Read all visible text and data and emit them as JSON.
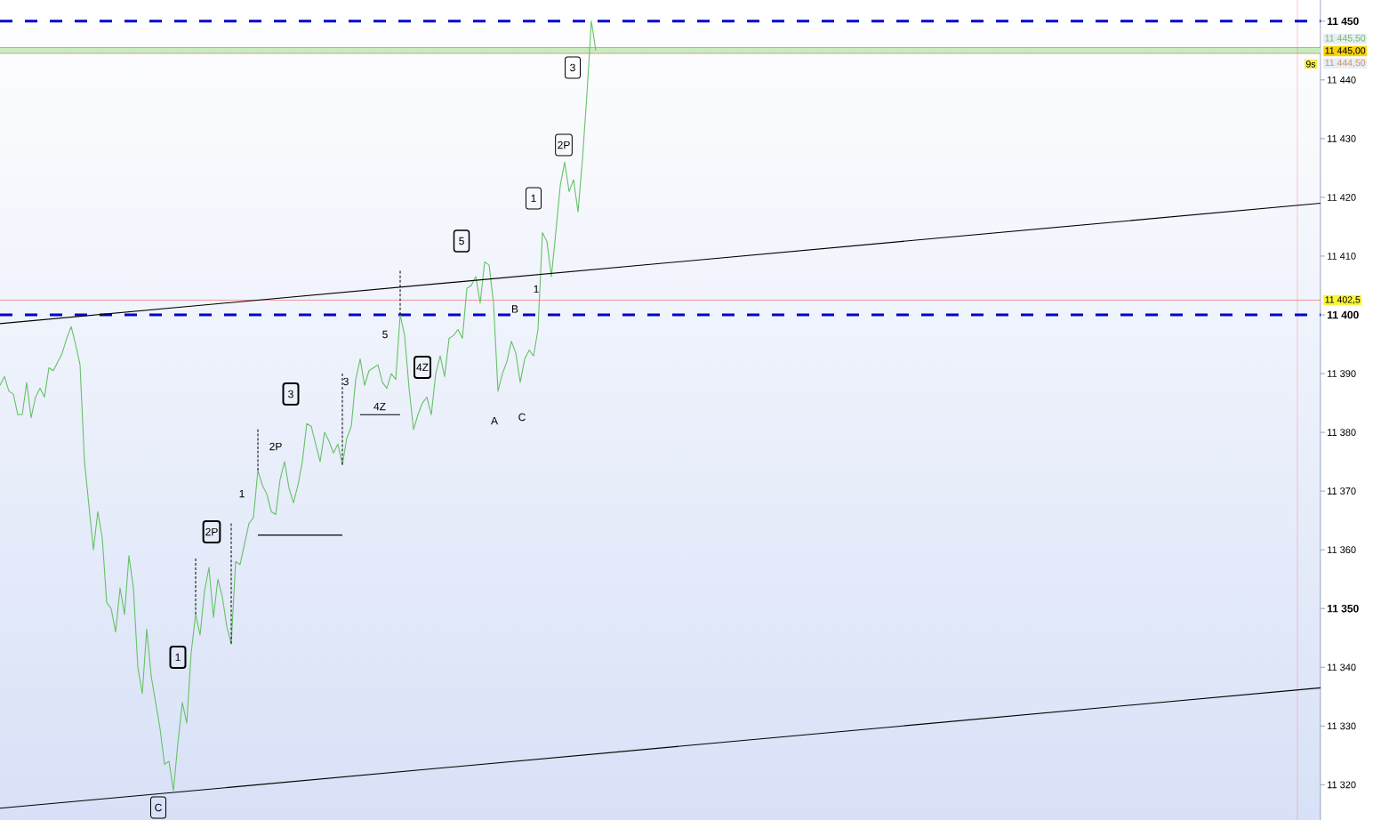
{
  "chart_data": {
    "type": "line",
    "categories": [
      null,
      null,
      null,
      null,
      null,
      null,
      null,
      null,
      null,
      null,
      null,
      null,
      null,
      null,
      null,
      null,
      null,
      null,
      null,
      null,
      null,
      null,
      null,
      null,
      null,
      null,
      null,
      null,
      null,
      null,
      null,
      null,
      null,
      null,
      null,
      null,
      null,
      null,
      null,
      null,
      null,
      null,
      null,
      null,
      null,
      null,
      null,
      null,
      null,
      null,
      null,
      null,
      null,
      null,
      null,
      null,
      null,
      null,
      null,
      null,
      null,
      null,
      null,
      null,
      null,
      null,
      null,
      null,
      null,
      null,
      null,
      null,
      null,
      null,
      null,
      null,
      null,
      null,
      null,
      null,
      null,
      null,
      null,
      null,
      null,
      null,
      null,
      null,
      null,
      null,
      null,
      null,
      null,
      null,
      null,
      null,
      null,
      null,
      null,
      null,
      null,
      null,
      null,
      null,
      null,
      null,
      null,
      null,
      null,
      null,
      null,
      null,
      null,
      null,
      null,
      null,
      null,
      null,
      null,
      null,
      null,
      null,
      null,
      null,
      null,
      null,
      null,
      null,
      null,
      null,
      null,
      null,
      null,
      null,
      null,
      null,
      null,
      null,
      null,
      null,
      null,
      null,
      null,
      null,
      null,
      null,
      null,
      null,
      null,
      null,
      null,
      null,
      null,
      null,
      null,
      null,
      null,
      null,
      null,
      null,
      null,
      null,
      null,
      null,
      null,
      null,
      null,
      null,
      null,
      null,
      null,
      null,
      null,
      null,
      null,
      null,
      null,
      null,
      null,
      null,
      null,
      null,
      null,
      null,
      null,
      null,
      null,
      null,
      null,
      null,
      null,
      null,
      null,
      null,
      null,
      null,
      null,
      null,
      null,
      null,
      null,
      null,
      null,
      null,
      null,
      null,
      null,
      null,
      null,
      null,
      null,
      null,
      null,
      null,
      null,
      null,
      null,
      null,
      null,
      null,
      null,
      null,
      null,
      null,
      null,
      null,
      null,
      null,
      null,
      null,
      null,
      null,
      null,
      null,
      null,
      null,
      null,
      null,
      null,
      null,
      null,
      null,
      null,
      null,
      null,
      null,
      null,
      null,
      null,
      null,
      null,
      null,
      null,
      null,
      null,
      null,
      null,
      null,
      null,
      null,
      null,
      null,
      null,
      null,
      null,
      null,
      null,
      null,
      null,
      null,
      null,
      null,
      null,
      null,
      null,
      null,
      null,
      null,
      null,
      null,
      null,
      null,
      null,
      null,
      null,
      null,
      null,
      null,
      null,
      null,
      null,
      null,
      null,
      null,
      null,
      null,
      null,
      null
    ],
    "series": [
      {
        "color": "#66c266",
        "values": [
          11388,
          11389.5,
          11387,
          11386.5,
          11383,
          11383,
          11388.5,
          11382.5,
          11386,
          11387.5,
          11386,
          11391,
          11390.5,
          11392,
          11393.5,
          11396,
          11398,
          11395,
          11391.5,
          11375,
          11367.5,
          11360,
          11366.5,
          11362,
          11351,
          11350,
          11346,
          11353.5,
          11349,
          11359,
          11353.5,
          11340,
          11335.5,
          11346.5,
          11338.5,
          11334,
          11329.5,
          11323.5,
          11324,
          11319,
          11327,
          11334,
          11330.5,
          11342.5,
          11349,
          11345.5,
          11353,
          11357,
          11348.5,
          11355,
          11352,
          11347,
          11344,
          11358,
          11357.5,
          11361,
          11364.5,
          11365.5,
          11373.5,
          11371,
          11369.5,
          11366.5,
          11366,
          11372,
          11375,
          11370.5,
          11368,
          11371,
          11375,
          11381.5,
          11381,
          11378,
          11375,
          11380,
          11378.5,
          11376.5,
          11378,
          11374.5,
          11379,
          11381,
          11389,
          11392.5,
          11388,
          11390.5,
          11391,
          11391.5,
          11388.5,
          11387.5,
          11390,
          11389,
          11400,
          11396.5,
          11387.5,
          11380.5,
          11383,
          11385,
          11386,
          11383,
          11390,
          11393,
          11389.5,
          11396,
          11396.5,
          11397.5,
          11396,
          11404.5,
          11405,
          11406.5,
          11402,
          11409,
          11408.5,
          11402,
          11387,
          11390,
          11392,
          11395.5,
          11393.5,
          11388.5,
          11392.5,
          11394,
          11393,
          11397.5,
          11414,
          11412.5,
          11406.5,
          11414,
          11422,
          11426,
          11421,
          11423,
          11417.5,
          11426.5,
          11437.5,
          11450,
          11445,
          null,
          null,
          null,
          null,
          null,
          null,
          null,
          null,
          null,
          null,
          null,
          null,
          null,
          null,
          null,
          null,
          null,
          null,
          null,
          null,
          null,
          null,
          null,
          null,
          null,
          null,
          null,
          null,
          null,
          null,
          null,
          null,
          null,
          null,
          null,
          null,
          null,
          null,
          null,
          null,
          null,
          null,
          null,
          null,
          null,
          null,
          null,
          null,
          null,
          null,
          null,
          null,
          null,
          null,
          null,
          null,
          null,
          null,
          null,
          null,
          null,
          null,
          null,
          null,
          null,
          null,
          null,
          null,
          null,
          null,
          null,
          null,
          null,
          null,
          null,
          null,
          null,
          null,
          null,
          null,
          null,
          null,
          null,
          null,
          null,
          null,
          null,
          null,
          null,
          null,
          null,
          null,
          null,
          null,
          null,
          null,
          null,
          null,
          null,
          null,
          null,
          null,
          null,
          null,
          null,
          null,
          null,
          null,
          null,
          null,
          null,
          null,
          null,
          null,
          null,
          null,
          null,
          null,
          null,
          null,
          null,
          null,
          null,
          null,
          null,
          null,
          null,
          null,
          null,
          null,
          null,
          null,
          null,
          null,
          null,
          null,
          null,
          null,
          null,
          null,
          null,
          null,
          null,
          null,
          null,
          null,
          null,
          null,
          null,
          null,
          null,
          null,
          null,
          null,
          null,
          null,
          null,
          null,
          null,
          null,
          null,
          null,
          null
        ],
        "errors": [
          null,
          null,
          null,
          null,
          null,
          null,
          null,
          null,
          null,
          null,
          null,
          null,
          null,
          null,
          null,
          null,
          null,
          null,
          null,
          null,
          null,
          null,
          null,
          null,
          null,
          null,
          null,
          null,
          null,
          null,
          null,
          null,
          null,
          null,
          null,
          null,
          null,
          null,
          null,
          null,
          null,
          null,
          null,
          null,
          [
            11349,
            11358.5
          ],
          null,
          null,
          null,
          null,
          null,
          null,
          null,
          [
            11344,
            11364.5
          ],
          null,
          null,
          null,
          null,
          null,
          [
            11373.5,
            11380.5
          ],
          null,
          null,
          null,
          null,
          null,
          null,
          null,
          null,
          null,
          null,
          null,
          null,
          null,
          null,
          null,
          null,
          null,
          null,
          [
            11374.5,
            11390
          ],
          null,
          null,
          null,
          null,
          null,
          null,
          null,
          null,
          null,
          null,
          null,
          null,
          [
            11400,
            11407.5
          ],
          null,
          null,
          null,
          null,
          null,
          null,
          null,
          null,
          null,
          null,
          null,
          null,
          null,
          null,
          null,
          null,
          null,
          null,
          null,
          null,
          null,
          null,
          null,
          null,
          null,
          null,
          null,
          null,
          null,
          null,
          null,
          null,
          null,
          null,
          null,
          null,
          null,
          null,
          null,
          null,
          null,
          null,
          null,
          null,
          null,
          null,
          null,
          null,
          null,
          null,
          null,
          null,
          null,
          null,
          null,
          null,
          null,
          null,
          null,
          null,
          null,
          null,
          null,
          null,
          null,
          null,
          null,
          null,
          null,
          null,
          null,
          null,
          null,
          null,
          null,
          null,
          null,
          null,
          null,
          null,
          null,
          null,
          null,
          null,
          null,
          null,
          null,
          null,
          null,
          null,
          null,
          null,
          null,
          null,
          null,
          null,
          null,
          null,
          null,
          null,
          null,
          null,
          null,
          null,
          null,
          null,
          null,
          null,
          null,
          null,
          null,
          null,
          null,
          null,
          null,
          null,
          null,
          null,
          null,
          null,
          null,
          null,
          null,
          null,
          null,
          null,
          null,
          null,
          null,
          null,
          null,
          null,
          null,
          null,
          null,
          null,
          null,
          null,
          null,
          null,
          null,
          null,
          null,
          null,
          null,
          null,
          null,
          null,
          null,
          null,
          null,
          null,
          null,
          null,
          null,
          null,
          null,
          null,
          null,
          null,
          null,
          null,
          null,
          null,
          null,
          null,
          null,
          null,
          null,
          null,
          null,
          null,
          null,
          null,
          null,
          null,
          null,
          null,
          null,
          null,
          null,
          null,
          null,
          null,
          null,
          null,
          null,
          null,
          null,
          null,
          null,
          null,
          null,
          null,
          null,
          null,
          null,
          null,
          null,
          null,
          null,
          null,
          null,
          null,
          null,
          null,
          null
        ]
      },
      {
        "color": "#000000",
        "values": [
          11398.5,
          null,
          null,
          null,
          null,
          null,
          null,
          null,
          null,
          null,
          null,
          null,
          null,
          null,
          null,
          null,
          null,
          null,
          null,
          null,
          null,
          null,
          null,
          null,
          null,
          null,
          null,
          null,
          null,
          null,
          null,
          null,
          null,
          null,
          null,
          null,
          null,
          null,
          null,
          null,
          null,
          null,
          null,
          null,
          null,
          null,
          null,
          null,
          null,
          null,
          null,
          null,
          null,
          null,
          null,
          null,
          null,
          null,
          null,
          null,
          null,
          null,
          null,
          null,
          null,
          null,
          null,
          null,
          null,
          null,
          null,
          null,
          null,
          null,
          null,
          null,
          null,
          null,
          null,
          null,
          null,
          null,
          null,
          null,
          null,
          null,
          null,
          null,
          null,
          null,
          null,
          null,
          null,
          null,
          null,
          null,
          null,
          null,
          null,
          null,
          null,
          null,
          null,
          null,
          null,
          null,
          null,
          null,
          null,
          null,
          null,
          null,
          null,
          null,
          null,
          null,
          null,
          null,
          null,
          null,
          null,
          null,
          null,
          null,
          null,
          null,
          null,
          null,
          null,
          null,
          null,
          null,
          null,
          null,
          null,
          null,
          null,
          null,
          null,
          null,
          null,
          null,
          null,
          null,
          null,
          null,
          null,
          null,
          null,
          null,
          null,
          null,
          null,
          null,
          null,
          null,
          null,
          null,
          null,
          null,
          null,
          null,
          null,
          null,
          null,
          null,
          null,
          null,
          null,
          null,
          null,
          null,
          null,
          null,
          null,
          null,
          null,
          null,
          null,
          null,
          null,
          null,
          null,
          null,
          null,
          null,
          null,
          null,
          null,
          null,
          null,
          null,
          null,
          null,
          null,
          null,
          null,
          null,
          null,
          null,
          null,
          null,
          null,
          null,
          null,
          null,
          null,
          null,
          null,
          null,
          null,
          null,
          null,
          null,
          null,
          null,
          null,
          null,
          null,
          null,
          null,
          null,
          null,
          null,
          null,
          null,
          null,
          null,
          null,
          null,
          null,
          null,
          null,
          null,
          null,
          null,
          null,
          null,
          null,
          null,
          null,
          null,
          null,
          null,
          null,
          null,
          null,
          null,
          null,
          null,
          null,
          null,
          null,
          null,
          null,
          null,
          null,
          null,
          null,
          null,
          null,
          null,
          null,
          null,
          null,
          null,
          null,
          null,
          null,
          null,
          null,
          null,
          null,
          null,
          null,
          null,
          null,
          null,
          null,
          null,
          null,
          null,
          null,
          null,
          null,
          null,
          null,
          null,
          null,
          null,
          null,
          null,
          null,
          null,
          null,
          null,
          null,
          11419
        ]
      },
      {
        "color": "#000000",
        "values": [
          11316,
          null,
          null,
          null,
          null,
          null,
          null,
          null,
          null,
          null,
          null,
          null,
          null,
          null,
          null,
          null,
          null,
          null,
          null,
          null,
          null,
          null,
          null,
          null,
          null,
          null,
          null,
          null,
          null,
          null,
          null,
          null,
          null,
          null,
          null,
          null,
          null,
          null,
          null,
          null,
          null,
          null,
          null,
          null,
          null,
          null,
          null,
          null,
          null,
          null,
          null,
          null,
          null,
          null,
          null,
          null,
          null,
          null,
          null,
          null,
          null,
          null,
          null,
          null,
          null,
          null,
          null,
          null,
          null,
          null,
          null,
          null,
          null,
          null,
          null,
          null,
          null,
          null,
          null,
          null,
          null,
          null,
          null,
          null,
          null,
          null,
          null,
          null,
          null,
          null,
          null,
          null,
          null,
          null,
          null,
          null,
          null,
          null,
          null,
          null,
          null,
          null,
          null,
          null,
          null,
          null,
          null,
          null,
          null,
          null,
          null,
          null,
          null,
          null,
          null,
          null,
          null,
          null,
          null,
          null,
          null,
          null,
          null,
          null,
          null,
          null,
          null,
          null,
          null,
          null,
          null,
          null,
          null,
          null,
          null,
          null,
          null,
          null,
          null,
          null,
          null,
          null,
          null,
          null,
          null,
          null,
          null,
          null,
          null,
          null,
          null,
          null,
          null,
          null,
          null,
          null,
          null,
          null,
          null,
          null,
          null,
          null,
          null,
          null,
          null,
          null,
          null,
          null,
          null,
          null,
          null,
          null,
          null,
          null,
          null,
          null,
          null,
          null,
          null,
          null,
          null,
          null,
          null,
          null,
          null,
          null,
          null,
          null,
          null,
          null,
          null,
          null,
          null,
          null,
          null,
          null,
          null,
          null,
          null,
          null,
          null,
          null,
          null,
          null,
          null,
          null,
          null,
          null,
          null,
          null,
          null,
          null,
          null,
          null,
          null,
          null,
          null,
          null,
          null,
          null,
          null,
          null,
          null,
          null,
          null,
          null,
          null,
          null,
          null,
          null,
          null,
          null,
          null,
          null,
          null,
          null,
          null,
          null,
          null,
          null,
          null,
          null,
          null,
          null,
          null,
          null,
          null,
          null,
          null,
          null,
          null,
          null,
          null,
          null,
          null,
          null,
          null,
          null,
          null,
          null,
          null,
          null,
          null,
          null,
          null,
          null,
          null,
          null,
          null,
          null,
          null,
          null,
          null,
          null,
          null,
          null,
          null,
          null,
          null,
          null,
          null,
          null,
          null,
          null,
          null,
          null,
          null,
          null,
          null,
          null,
          null,
          null,
          null,
          null,
          null,
          null,
          null,
          11336.5
        ]
      },
      {
        "color": "#000000",
        "values": [
          null,
          null,
          null,
          null,
          null,
          null,
          null,
          null,
          null,
          null,
          null,
          null,
          null,
          null,
          null,
          null,
          null,
          null,
          null,
          null,
          null,
          null,
          null,
          null,
          null,
          null,
          null,
          null,
          null,
          null,
          null,
          null,
          null,
          null,
          null,
          null,
          null,
          null,
          null,
          null,
          null,
          null,
          null,
          null,
          null,
          null,
          null,
          null,
          null,
          null,
          null,
          null,
          null,
          null,
          null,
          null,
          null,
          null,
          11362.5,
          null,
          null,
          null,
          null,
          null,
          null,
          null,
          null,
          null,
          null,
          null,
          null,
          null,
          null,
          null,
          null,
          null,
          null,
          11362.5,
          null,
          null,
          null,
          null,
          null,
          null,
          null,
          null,
          null,
          null,
          null,
          null,
          null,
          null,
          null,
          null,
          null,
          null,
          null,
          null,
          null,
          null,
          null,
          null,
          null,
          null,
          null,
          null,
          null,
          null,
          null,
          null,
          null,
          null,
          null,
          null,
          null,
          null,
          null,
          null,
          null,
          null,
          null,
          null,
          null,
          null,
          null,
          null,
          null,
          null,
          null,
          null,
          null,
          null,
          null,
          null,
          null,
          null,
          null,
          null,
          null,
          null,
          null,
          null,
          null,
          null,
          null,
          null,
          null,
          null,
          null,
          null,
          null,
          null,
          null,
          null,
          null,
          null,
          null,
          null,
          null,
          null,
          null,
          null,
          null,
          null,
          null,
          null,
          null,
          null,
          null,
          null,
          null,
          null,
          null,
          null,
          null,
          null,
          null,
          null,
          null,
          null,
          null,
          null,
          null,
          null,
          null,
          null,
          null,
          null,
          null,
          null,
          null,
          null,
          null,
          null,
          null,
          null,
          null,
          null,
          null,
          null,
          null,
          null,
          null,
          null,
          null,
          null,
          null,
          null,
          null,
          null,
          null,
          null,
          null,
          null,
          null,
          null,
          null,
          null,
          null,
          null,
          null,
          null,
          null,
          null,
          null,
          null,
          null,
          null,
          null,
          null,
          null,
          null,
          null,
          null,
          null,
          null,
          null,
          null,
          null,
          null,
          null,
          null,
          null,
          null,
          null,
          null,
          null,
          null,
          null,
          null,
          null,
          null,
          null,
          null,
          null,
          null,
          null,
          null,
          null,
          null,
          null,
          null,
          null,
          null,
          null,
          null,
          null,
          null,
          null,
          null,
          null,
          null,
          null,
          null,
          null,
          null,
          null,
          null,
          null,
          null,
          null,
          null,
          null,
          null,
          null,
          null,
          null,
          null,
          null,
          null,
          null,
          null,
          null,
          null,
          null,
          null,
          null,
          null
        ]
      },
      {
        "color": "#000000",
        "values": [
          null,
          null,
          null,
          null,
          null,
          null,
          null,
          null,
          null,
          null,
          null,
          null,
          null,
          null,
          null,
          null,
          null,
          null,
          null,
          null,
          null,
          null,
          null,
          null,
          null,
          null,
          null,
          null,
          null,
          null,
          null,
          null,
          null,
          null,
          null,
          null,
          null,
          null,
          null,
          null,
          null,
          null,
          null,
          null,
          null,
          null,
          null,
          null,
          null,
          null,
          null,
          null,
          null,
          null,
          null,
          null,
          null,
          null,
          null,
          null,
          null,
          null,
          null,
          null,
          null,
          null,
          null,
          null,
          null,
          null,
          null,
          null,
          null,
          null,
          null,
          null,
          null,
          null,
          null,
          null,
          null,
          11383,
          null,
          null,
          null,
          null,
          null,
          null,
          null,
          null,
          11383,
          null,
          null,
          null,
          null,
          null,
          null,
          null,
          null,
          null,
          null,
          null,
          null,
          null,
          null,
          null,
          null,
          null,
          null,
          null,
          null,
          null,
          null,
          null,
          null,
          null,
          null,
          null,
          null,
          null,
          null,
          null,
          null,
          null,
          null,
          null,
          null,
          null,
          null,
          null,
          null,
          null,
          null,
          null,
          null,
          null,
          null,
          null,
          null,
          null,
          null,
          null,
          null,
          null,
          null,
          null,
          null,
          null,
          null,
          null,
          null,
          null,
          null,
          null,
          null,
          null,
          null,
          null,
          null,
          null,
          null,
          null,
          null,
          null,
          null,
          null,
          null,
          null,
          null,
          null,
          null,
          null,
          null,
          null,
          null,
          null,
          null,
          null,
          null,
          null,
          null,
          null,
          null,
          null,
          null,
          null,
          null,
          null,
          null,
          null,
          null,
          null,
          null,
          null,
          null,
          null,
          null,
          null,
          null,
          null,
          null,
          null,
          null,
          null,
          null,
          null,
          null,
          null,
          null,
          null,
          null,
          null,
          null,
          null,
          null,
          null,
          null,
          null,
          null,
          null,
          null,
          null,
          null,
          null,
          null,
          null,
          null,
          null,
          null,
          null,
          null,
          null,
          null,
          null,
          null,
          null,
          null,
          null,
          null,
          null,
          null,
          null,
          null,
          null,
          null,
          null,
          null,
          null,
          null,
          null,
          null,
          null,
          null,
          null,
          null,
          null,
          null,
          null,
          null,
          null,
          null,
          null,
          null,
          null,
          null,
          null,
          null,
          null,
          null,
          null,
          null,
          null,
          null,
          null,
          null,
          null,
          null,
          null,
          null,
          null,
          null,
          null,
          null,
          null,
          null,
          null,
          null,
          null,
          null,
          null,
          null,
          null,
          null,
          null,
          null,
          null,
          null,
          null
        ]
      }
    ],
    "ylim": [
      11314,
      11453.6
    ],
    "yticks": [
      {
        "value": 11320,
        "label": "11 320"
      },
      {
        "value": 11330,
        "label": "11 330"
      },
      {
        "value": 11340,
        "label": "11 340"
      },
      {
        "value": 11350,
        "label": "11 350"
      },
      {
        "value": 11360,
        "label": "11 360"
      },
      {
        "value": 11370,
        "label": "11 370"
      },
      {
        "value": 11380,
        "label": "11 380"
      },
      {
        "value": 11390,
        "label": "11 390"
      },
      {
        "value": 11400,
        "label": "11 400"
      },
      {
        "value": 11410,
        "label": "11 410"
      },
      {
        "value": 11420,
        "label": "11 420"
      },
      {
        "value": 11430,
        "label": "11 430"
      },
      {
        "value": 11440,
        "label": "11 440"
      },
      {
        "value": 11450,
        "label": "11 450"
      }
    ],
    "tick_labels": "y",
    "ref_lines": [
      {
        "axis": "y",
        "value": 11450,
        "color": "#0000cc",
        "line_style": "dashed"
      },
      {
        "axis": "y",
        "value": 11400,
        "color": "#0000cc",
        "line_style": "dashed"
      },
      {
        "axis": "y",
        "value": 11402.5,
        "label": "11 402,5",
        "color": "#f08080"
      },
      {
        "axis": "y",
        "value": 11445.5,
        "label": "11 445,50",
        "color": "#6cbf5c"
      },
      {
        "axis": "y",
        "value": 11444.5,
        "label": "11 444,50",
        "color": "#c9926b"
      }
    ],
    "bands": [
      {
        "axis": "y",
        "from": 11444.5,
        "to": 11445.5,
        "color": "#c8ecbf"
      }
    ],
    "annotations": [
      "1",
      "2P",
      "3",
      "4Z",
      "5",
      "1",
      "2P",
      "3",
      "C",
      "1",
      "2P",
      "3",
      "4Z",
      "5",
      "A",
      "B",
      "C",
      "1",
      "9s",
      "11 445,00"
    ]
  }
}
